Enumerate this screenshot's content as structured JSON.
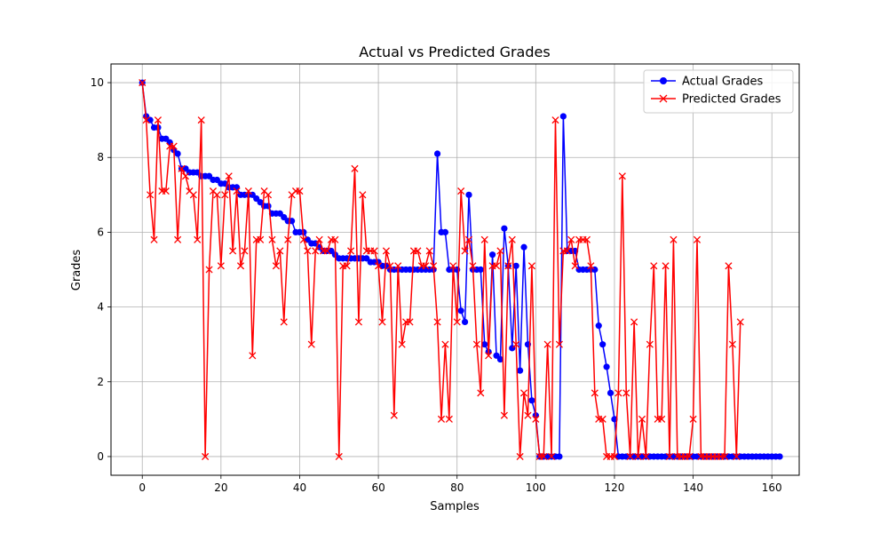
{
  "chart_data": {
    "type": "line",
    "title": "Actual vs Predicted Grades",
    "xlabel": "Samples",
    "ylabel": "Grades",
    "xlim": [
      -7.95,
      166.95
    ],
    "ylim": [
      -0.5,
      10.5
    ],
    "xticks": [
      0,
      20,
      40,
      60,
      80,
      100,
      120,
      140,
      160
    ],
    "yticks": [
      0,
      2,
      4,
      6,
      8,
      10
    ],
    "grid": true,
    "legend": "top-right",
    "series": [
      {
        "name": "Actual Grades",
        "color": "#0000ff",
        "marker": "circle",
        "values": [
          10,
          9.1,
          9.0,
          8.8,
          8.8,
          8.5,
          8.5,
          8.4,
          8.2,
          8.1,
          7.7,
          7.7,
          7.6,
          7.6,
          7.6,
          7.5,
          7.5,
          7.5,
          7.4,
          7.4,
          7.3,
          7.3,
          7.2,
          7.2,
          7.2,
          7.0,
          7.0,
          7.0,
          7.0,
          6.9,
          6.8,
          6.7,
          6.7,
          6.5,
          6.5,
          6.5,
          6.4,
          6.3,
          6.3,
          6.0,
          6.0,
          6.0,
          5.8,
          5.7,
          5.7,
          5.6,
          5.5,
          5.5,
          5.5,
          5.4,
          5.3,
          5.3,
          5.3,
          5.3,
          5.3,
          5.3,
          5.3,
          5.3,
          5.2,
          5.2,
          5.2,
          5.1,
          5.1,
          5.0,
          5.0,
          5.0,
          5.0,
          5.0,
          5.0,
          5.0,
          5.0,
          5.0,
          5.0,
          5.0,
          5.0,
          8.1,
          6.0,
          6.0,
          5.0,
          5.0,
          5.0,
          3.9,
          3.6,
          7.0,
          5.0,
          5.0,
          5.0,
          3.0,
          2.8,
          5.4,
          2.7,
          2.6,
          6.1,
          5.1,
          2.9,
          5.1,
          2.3,
          5.6,
          3.0,
          1.5,
          1.1,
          0,
          0,
          0,
          0,
          0,
          0,
          9.1,
          5.5,
          5.5,
          5.5,
          5.0,
          5.0,
          5.0,
          5.0,
          5.0,
          3.5,
          3.0,
          2.4,
          1.7,
          1.0,
          0,
          0,
          0,
          0,
          0,
          0,
          0,
          0,
          0,
          0,
          0,
          0,
          0,
          0,
          0,
          0,
          0,
          0,
          0,
          0,
          0,
          0,
          0,
          0,
          0,
          0,
          0,
          0,
          0,
          0,
          0,
          0,
          0,
          0,
          0,
          0,
          0,
          0,
          0,
          0,
          0,
          0
        ]
      },
      {
        "name": "Predicted Grades",
        "color": "#ff0000",
        "marker": "x",
        "values": [
          10,
          9.0,
          7.0,
          5.8,
          9.0,
          7.1,
          7.1,
          8.3,
          8.3,
          5.8,
          7.7,
          7.5,
          7.1,
          7.0,
          5.8,
          9.0,
          0,
          5.0,
          7.1,
          7.0,
          5.1,
          7.0,
          7.5,
          5.5,
          7.1,
          5.1,
          5.5,
          7.1,
          2.7,
          5.8,
          5.8,
          7.1,
          7.0,
          5.8,
          5.1,
          5.5,
          3.6,
          5.8,
          7.0,
          7.1,
          7.1,
          5.8,
          5.5,
          3.0,
          5.5,
          5.8,
          5.5,
          5.5,
          5.8,
          5.8,
          0,
          5.1,
          5.1,
          5.5,
          7.7,
          3.6,
          7.0,
          5.5,
          5.5,
          5.5,
          5.1,
          3.6,
          5.5,
          5.1,
          1.1,
          5.1,
          3.0,
          3.6,
          3.6,
          5.5,
          5.5,
          5.1,
          5.1,
          5.5,
          5.1,
          3.6,
          1.0,
          3.0,
          1.0,
          5.1,
          3.6,
          7.1,
          5.5,
          5.8,
          5.1,
          3.0,
          1.7,
          5.8,
          2.7,
          5.1,
          5.1,
          5.5,
          1.1,
          5.1,
          5.8,
          3.0,
          0,
          1.7,
          1.1,
          5.1,
          1.0,
          0,
          0,
          3.0,
          0,
          9.0,
          3.0,
          5.5,
          5.5,
          5.8,
          5.1,
          5.8,
          5.8,
          5.8,
          5.1,
          1.7,
          1.0,
          1.0,
          0,
          0,
          0,
          1.7,
          7.5,
          1.7,
          0,
          3.6,
          0,
          1.0,
          0,
          3.0,
          5.1,
          1.0,
          1.0,
          5.1,
          0,
          5.8,
          0,
          0,
          0,
          0,
          1.0,
          5.8,
          0,
          0,
          0,
          0,
          0,
          0,
          0,
          5.1,
          3.0,
          0,
          3.6
        ]
      }
    ]
  }
}
